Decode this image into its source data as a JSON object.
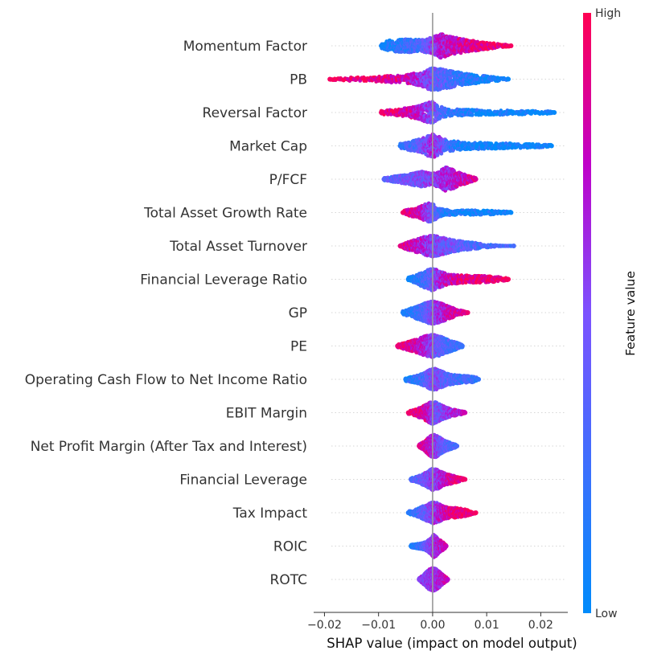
{
  "chart_data": {
    "type": "scatter",
    "subtype": "shap-beeswarm",
    "xlabel": "SHAP value (impact on model output)",
    "ylabel": "",
    "xlim": [
      -0.022,
      0.025
    ],
    "xticks": [
      -0.02,
      -0.01,
      0.0,
      0.01,
      0.02
    ],
    "xtick_labels": [
      "−0.02",
      "−0.01",
      "0.00",
      "0.01",
      "0.02"
    ],
    "zero_line": 0.0,
    "grid": false,
    "colorbar": {
      "title": "Feature value",
      "high_label": "High",
      "low_label": "Low",
      "high_color": "#ff0052",
      "low_color": "#008bfb"
    },
    "features": [
      {
        "name": "Momentum Factor",
        "min": -0.0095,
        "max": 0.0145,
        "profile": [
          [
            -0.0095,
            0.2,
            0.05
          ],
          [
            -0.008,
            0.45,
            0.12
          ],
          [
            -0.005,
            0.55,
            0.22
          ],
          [
            -0.002,
            0.5,
            0.32
          ],
          [
            0.0,
            0.7,
            0.55
          ],
          [
            0.0015,
            1.0,
            0.7
          ],
          [
            0.004,
            0.7,
            0.78
          ],
          [
            0.007,
            0.45,
            0.85
          ],
          [
            0.01,
            0.3,
            0.9
          ],
          [
            0.013,
            0.12,
            0.95
          ],
          [
            0.0145,
            0.05,
            0.97
          ]
        ]
      },
      {
        "name": "PB",
        "min": -0.019,
        "max": 0.014,
        "profile": [
          [
            -0.019,
            0.06,
            0.97
          ],
          [
            -0.015,
            0.15,
            0.95
          ],
          [
            -0.01,
            0.22,
            0.92
          ],
          [
            -0.005,
            0.35,
            0.8
          ],
          [
            -0.002,
            0.6,
            0.6
          ],
          [
            0.0,
            1.0,
            0.45
          ],
          [
            0.002,
            0.8,
            0.35
          ],
          [
            0.005,
            0.55,
            0.2
          ],
          [
            0.009,
            0.3,
            0.1
          ],
          [
            0.012,
            0.15,
            0.05
          ],
          [
            0.014,
            0.05,
            0.03
          ]
        ]
      },
      {
        "name": "Reversal Factor",
        "min": -0.0095,
        "max": 0.0225,
        "profile": [
          [
            -0.0095,
            0.15,
            0.95
          ],
          [
            -0.006,
            0.3,
            0.88
          ],
          [
            -0.003,
            0.5,
            0.75
          ],
          [
            -0.0015,
            0.75,
            0.6
          ],
          [
            0.0,
            0.9,
            0.5
          ],
          [
            0.001,
            0.55,
            0.4
          ],
          [
            0.003,
            0.3,
            0.2
          ],
          [
            0.008,
            0.22,
            0.06
          ],
          [
            0.014,
            0.18,
            0.04
          ],
          [
            0.019,
            0.15,
            0.03
          ],
          [
            0.0225,
            0.08,
            0.02
          ]
        ]
      },
      {
        "name": "Market Cap",
        "min": -0.006,
        "max": 0.022,
        "profile": [
          [
            -0.006,
            0.2,
            0.15
          ],
          [
            -0.004,
            0.4,
            0.3
          ],
          [
            -0.002,
            0.6,
            0.45
          ],
          [
            0.0,
            1.0,
            0.65
          ],
          [
            0.0015,
            0.7,
            0.5
          ],
          [
            0.003,
            0.45,
            0.2
          ],
          [
            0.006,
            0.3,
            0.08
          ],
          [
            0.01,
            0.25,
            0.05
          ],
          [
            0.015,
            0.2,
            0.04
          ],
          [
            0.019,
            0.15,
            0.03
          ],
          [
            0.022,
            0.08,
            0.02
          ]
        ]
      },
      {
        "name": "P/FCF",
        "min": -0.009,
        "max": 0.008,
        "profile": [
          [
            -0.009,
            0.1,
            0.35
          ],
          [
            -0.007,
            0.25,
            0.4
          ],
          [
            -0.004,
            0.45,
            0.45
          ],
          [
            -0.002,
            0.65,
            0.5
          ],
          [
            0.0,
            0.45,
            0.55
          ],
          [
            0.0015,
            0.75,
            0.6
          ],
          [
            0.0025,
            1.0,
            0.65
          ],
          [
            0.004,
            0.75,
            0.7
          ],
          [
            0.0055,
            0.45,
            0.75
          ],
          [
            0.007,
            0.25,
            0.8
          ],
          [
            0.008,
            0.1,
            0.85
          ]
        ]
      },
      {
        "name": "Total Asset Growth Rate",
        "min": -0.0055,
        "max": 0.0145,
        "profile": [
          [
            -0.0055,
            0.15,
            0.95
          ],
          [
            -0.004,
            0.3,
            0.88
          ],
          [
            -0.002,
            0.55,
            0.75
          ],
          [
            -0.001,
            0.8,
            0.6
          ],
          [
            0.0,
            0.75,
            0.45
          ],
          [
            0.001,
            0.4,
            0.3
          ],
          [
            0.002,
            0.25,
            0.15
          ],
          [
            0.004,
            0.2,
            0.06
          ],
          [
            0.008,
            0.18,
            0.04
          ],
          [
            0.012,
            0.15,
            0.03
          ],
          [
            0.0145,
            0.08,
            0.02
          ]
        ]
      },
      {
        "name": "Total Asset Turnover",
        "min": -0.006,
        "max": 0.015,
        "profile": [
          [
            -0.006,
            0.15,
            0.9
          ],
          [
            -0.004,
            0.4,
            0.8
          ],
          [
            -0.002,
            0.7,
            0.68
          ],
          [
            0.0,
            0.9,
            0.55
          ],
          [
            0.0015,
            0.75,
            0.5
          ],
          [
            0.0035,
            0.5,
            0.42
          ],
          [
            0.006,
            0.35,
            0.35
          ],
          [
            0.008,
            0.25,
            0.32
          ],
          [
            0.0105,
            0.12,
            0.3
          ],
          [
            0.013,
            0.02,
            0.3
          ],
          [
            0.015,
            0.03,
            0.28
          ]
        ]
      },
      {
        "name": "Financial Leverage Ratio",
        "min": -0.0045,
        "max": 0.014,
        "profile": [
          [
            -0.0045,
            0.15,
            0.05
          ],
          [
            -0.003,
            0.35,
            0.1
          ],
          [
            -0.0015,
            0.7,
            0.25
          ],
          [
            0.0,
            0.95,
            0.45
          ],
          [
            0.0015,
            0.65,
            0.65
          ],
          [
            0.003,
            0.4,
            0.8
          ],
          [
            0.005,
            0.35,
            0.88
          ],
          [
            0.008,
            0.3,
            0.92
          ],
          [
            0.011,
            0.25,
            0.94
          ],
          [
            0.013,
            0.15,
            0.96
          ],
          [
            0.014,
            0.08,
            0.97
          ]
        ]
      },
      {
        "name": "GP",
        "min": -0.0055,
        "max": 0.0065,
        "profile": [
          [
            -0.0055,
            0.15,
            0.1
          ],
          [
            -0.004,
            0.35,
            0.15
          ],
          [
            -0.0025,
            0.6,
            0.25
          ],
          [
            -0.001,
            0.85,
            0.4
          ],
          [
            0.0,
            0.95,
            0.5
          ],
          [
            0.001,
            0.85,
            0.6
          ],
          [
            0.002,
            0.7,
            0.7
          ],
          [
            0.0035,
            0.45,
            0.8
          ],
          [
            0.0045,
            0.25,
            0.85
          ],
          [
            0.0055,
            0.15,
            0.9
          ],
          [
            0.0065,
            0.05,
            0.93
          ]
        ]
      },
      {
        "name": "PE",
        "min": -0.0065,
        "max": 0.0055,
        "profile": [
          [
            -0.0065,
            0.12,
            0.92
          ],
          [
            -0.005,
            0.3,
            0.88
          ],
          [
            -0.003,
            0.55,
            0.78
          ],
          [
            -0.0015,
            0.8,
            0.68
          ],
          [
            0.0,
            0.95,
            0.55
          ],
          [
            0.001,
            0.85,
            0.45
          ],
          [
            0.002,
            0.7,
            0.35
          ],
          [
            0.003,
            0.5,
            0.3
          ],
          [
            0.004,
            0.35,
            0.28
          ],
          [
            0.005,
            0.2,
            0.25
          ],
          [
            0.0055,
            0.1,
            0.22
          ]
        ]
      },
      {
        "name": "Operating Cash Flow to Net Income Ratio",
        "min": -0.005,
        "max": 0.0085,
        "profile": [
          [
            -0.005,
            0.15,
            0.1
          ],
          [
            -0.003,
            0.3,
            0.18
          ],
          [
            -0.0015,
            0.55,
            0.3
          ],
          [
            -0.0005,
            0.8,
            0.45
          ],
          [
            0.0005,
            0.9,
            0.5
          ],
          [
            0.0015,
            0.7,
            0.45
          ],
          [
            0.003,
            0.45,
            0.35
          ],
          [
            0.0045,
            0.35,
            0.28
          ],
          [
            0.006,
            0.3,
            0.25
          ],
          [
            0.0075,
            0.25,
            0.22
          ],
          [
            0.0085,
            0.12,
            0.2
          ]
        ]
      },
      {
        "name": "EBIT Margin",
        "min": -0.0045,
        "max": 0.006,
        "profile": [
          [
            -0.0045,
            0.12,
            0.95
          ],
          [
            -0.003,
            0.3,
            0.9
          ],
          [
            -0.0015,
            0.6,
            0.85
          ],
          [
            -0.0005,
            0.85,
            0.7
          ],
          [
            0.0,
            0.95,
            0.55
          ],
          [
            0.0007,
            0.85,
            0.45
          ],
          [
            0.0015,
            0.65,
            0.45
          ],
          [
            0.0025,
            0.45,
            0.55
          ],
          [
            0.0035,
            0.3,
            0.65
          ],
          [
            0.0048,
            0.2,
            0.75
          ],
          [
            0.006,
            0.08,
            0.8
          ]
        ]
      },
      {
        "name": "Net Profit Margin (After Tax and Interest)",
        "min": -0.0025,
        "max": 0.0045,
        "profile": [
          [
            -0.0025,
            0.12,
            0.9
          ],
          [
            -0.0015,
            0.4,
            0.85
          ],
          [
            -0.0008,
            0.7,
            0.78
          ],
          [
            -0.0002,
            0.9,
            0.7
          ],
          [
            0.0005,
            0.95,
            0.6
          ],
          [
            0.0012,
            0.75,
            0.5
          ],
          [
            0.002,
            0.5,
            0.4
          ],
          [
            0.0028,
            0.35,
            0.35
          ],
          [
            0.0035,
            0.25,
            0.3
          ],
          [
            0.004,
            0.18,
            0.3
          ],
          [
            0.0045,
            0.08,
            0.3
          ]
        ]
      },
      {
        "name": "Financial Leverage",
        "min": -0.004,
        "max": 0.006,
        "profile": [
          [
            -0.004,
            0.12,
            0.3
          ],
          [
            -0.0025,
            0.3,
            0.4
          ],
          [
            -0.0012,
            0.6,
            0.5
          ],
          [
            0.0,
            0.9,
            0.55
          ],
          [
            0.001,
            0.8,
            0.6
          ],
          [
            0.002,
            0.55,
            0.7
          ],
          [
            0.003,
            0.4,
            0.8
          ],
          [
            0.004,
            0.3,
            0.88
          ],
          [
            0.005,
            0.2,
            0.92
          ],
          [
            0.0055,
            0.12,
            0.94
          ],
          [
            0.006,
            0.06,
            0.95
          ]
        ]
      },
      {
        "name": "Tax Impact",
        "min": -0.0045,
        "max": 0.008,
        "profile": [
          [
            -0.0045,
            0.12,
            0.15
          ],
          [
            -0.003,
            0.3,
            0.25
          ],
          [
            -0.0015,
            0.6,
            0.4
          ],
          [
            0.0,
            0.9,
            0.55
          ],
          [
            0.001,
            0.8,
            0.65
          ],
          [
            0.002,
            0.55,
            0.75
          ],
          [
            0.003,
            0.45,
            0.85
          ],
          [
            0.0045,
            0.4,
            0.92
          ],
          [
            0.006,
            0.3,
            0.95
          ],
          [
            0.007,
            0.18,
            0.97
          ],
          [
            0.008,
            0.06,
            0.97
          ]
        ]
      },
      {
        "name": "ROIC",
        "min": -0.004,
        "max": 0.0025,
        "profile": [
          [
            -0.004,
            0.12,
            0.1
          ],
          [
            -0.003,
            0.2,
            0.2
          ],
          [
            -0.002,
            0.25,
            0.3
          ],
          [
            -0.001,
            0.4,
            0.45
          ],
          [
            -0.0003,
            0.7,
            0.55
          ],
          [
            0.0002,
            0.95,
            0.6
          ],
          [
            0.0007,
            0.8,
            0.65
          ],
          [
            0.0012,
            0.55,
            0.7
          ],
          [
            0.0017,
            0.4,
            0.72
          ],
          [
            0.0022,
            0.25,
            0.75
          ],
          [
            0.0025,
            0.1,
            0.78
          ]
        ]
      },
      {
        "name": "ROTC",
        "min": -0.0025,
        "max": 0.0028,
        "profile": [
          [
            -0.0025,
            0.12,
            0.55
          ],
          [
            -0.0018,
            0.35,
            0.55
          ],
          [
            -0.0012,
            0.6,
            0.55
          ],
          [
            -0.0006,
            0.85,
            0.58
          ],
          [
            0.0,
            0.95,
            0.6
          ],
          [
            0.0005,
            0.9,
            0.62
          ],
          [
            0.001,
            0.75,
            0.65
          ],
          [
            0.0015,
            0.55,
            0.7
          ],
          [
            0.002,
            0.35,
            0.72
          ],
          [
            0.0025,
            0.2,
            0.75
          ],
          [
            0.0028,
            0.08,
            0.75
          ]
        ]
      }
    ]
  }
}
